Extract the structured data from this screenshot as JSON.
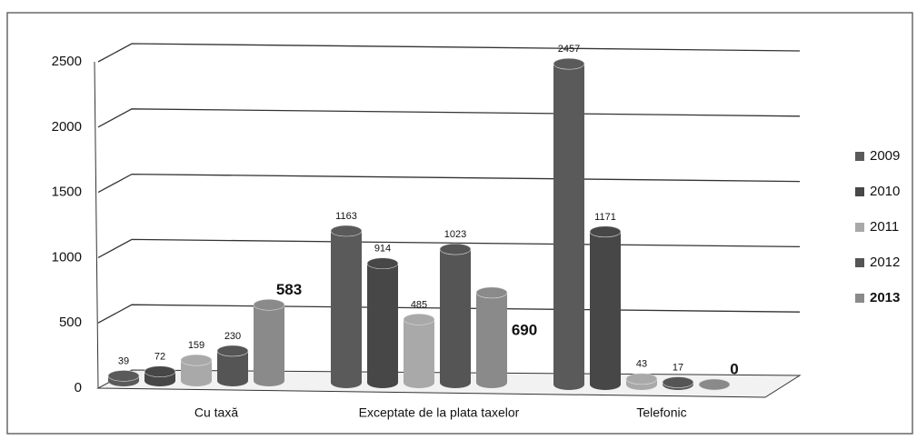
{
  "chart_data": {
    "type": "bar3d",
    "categories": [
      "Cu taxă",
      "Exceptate de la plata taxelor",
      "Telefonic"
    ],
    "series": [
      {
        "name": "2009",
        "color": "#5a5a5a",
        "values": [
          39,
          1163,
          2457
        ]
      },
      {
        "name": "2010",
        "color": "#474747",
        "values": [
          72,
          914,
          1171
        ]
      },
      {
        "name": "2011",
        "color": "#a9a9a9",
        "values": [
          159,
          485,
          43
        ]
      },
      {
        "name": "2012",
        "color": "#555555",
        "values": [
          230,
          1023,
          17
        ]
      },
      {
        "name": "2013",
        "color": "#8a8a8a",
        "values": [
          583,
          690,
          0
        ]
      }
    ],
    "ylim": [
      0,
      2500
    ],
    "yticks": [
      0,
      500,
      1000,
      1500,
      2000,
      2500
    ],
    "grid": true,
    "legend": "right"
  }
}
